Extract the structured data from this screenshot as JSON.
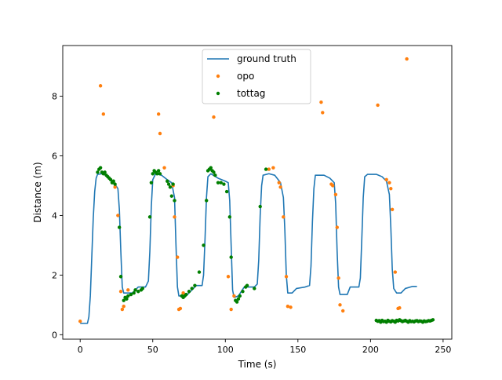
{
  "chart_data": {
    "type": "line",
    "title": "",
    "xlabel": "Time (s)",
    "ylabel": "Distance (m)",
    "xlim": [
      -12,
      256
    ],
    "ylim": [
      -0.15,
      9.7
    ],
    "xticks": [
      0,
      50,
      100,
      150,
      200,
      250
    ],
    "yticks": [
      0,
      2,
      4,
      6,
      8
    ],
    "legend_position": "top-center",
    "grid": false,
    "series": [
      {
        "name": "ground truth",
        "kind": "line",
        "color": "#1f77b4",
        "points": [
          [
            0,
            0.38
          ],
          [
            5,
            0.38
          ],
          [
            6,
            0.6
          ],
          [
            7,
            1.3
          ],
          [
            8,
            2.6
          ],
          [
            9,
            3.9
          ],
          [
            10,
            4.8
          ],
          [
            11,
            5.25
          ],
          [
            12,
            5.38
          ],
          [
            15,
            5.4
          ],
          [
            18,
            5.35
          ],
          [
            20,
            5.25
          ],
          [
            22,
            5.15
          ],
          [
            24,
            5.05
          ],
          [
            26,
            4.9
          ],
          [
            27,
            4.2
          ],
          [
            28,
            2.8
          ],
          [
            29,
            1.6
          ],
          [
            30,
            1.4
          ],
          [
            36,
            1.4
          ],
          [
            38,
            1.5
          ],
          [
            40,
            1.6
          ],
          [
            45,
            1.6
          ],
          [
            47,
            1.8
          ],
          [
            48,
            2.8
          ],
          [
            49,
            4.3
          ],
          [
            50,
            5.2
          ],
          [
            52,
            5.4
          ],
          [
            56,
            5.35
          ],
          [
            60,
            5.2
          ],
          [
            63,
            5.1
          ],
          [
            65,
            4.6
          ],
          [
            66,
            3.0
          ],
          [
            67,
            1.6
          ],
          [
            68,
            1.3
          ],
          [
            73,
            1.3
          ],
          [
            76,
            1.45
          ],
          [
            80,
            1.65
          ],
          [
            84,
            1.65
          ],
          [
            85,
            2.0
          ],
          [
            86,
            3.2
          ],
          [
            87,
            4.6
          ],
          [
            88,
            5.3
          ],
          [
            90,
            5.4
          ],
          [
            95,
            5.25
          ],
          [
            100,
            5.15
          ],
          [
            102,
            5.1
          ],
          [
            103,
            4.5
          ],
          [
            104,
            3.0
          ],
          [
            105,
            1.5
          ],
          [
            106,
            1.25
          ],
          [
            109,
            1.3
          ],
          [
            113,
            1.6
          ],
          [
            120,
            1.6
          ],
          [
            122,
            1.7
          ],
          [
            123,
            2.5
          ],
          [
            124,
            4.0
          ],
          [
            125,
            5.0
          ],
          [
            126,
            5.35
          ],
          [
            130,
            5.4
          ],
          [
            134,
            5.35
          ],
          [
            138,
            5.1
          ],
          [
            140,
            4.6
          ],
          [
            141,
            3.5
          ],
          [
            142,
            2.0
          ],
          [
            143,
            1.4
          ],
          [
            146,
            1.4
          ],
          [
            149,
            1.55
          ],
          [
            155,
            1.6
          ],
          [
            158,
            1.65
          ],
          [
            159,
            2.3
          ],
          [
            160,
            3.8
          ],
          [
            161,
            4.9
          ],
          [
            162,
            5.35
          ],
          [
            168,
            5.35
          ],
          [
            172,
            5.25
          ],
          [
            175,
            5.1
          ],
          [
            176,
            4.4
          ],
          [
            177,
            2.8
          ],
          [
            178,
            1.6
          ],
          [
            179,
            1.35
          ],
          [
            184,
            1.35
          ],
          [
            186,
            1.6
          ],
          [
            192,
            1.6
          ],
          [
            193,
            1.9
          ],
          [
            194,
            3.2
          ],
          [
            195,
            4.6
          ],
          [
            196,
            5.3
          ],
          [
            198,
            5.38
          ],
          [
            204,
            5.38
          ],
          [
            208,
            5.3
          ],
          [
            211,
            5.15
          ],
          [
            213,
            4.7
          ],
          [
            214,
            3.6
          ],
          [
            215,
            2.2
          ],
          [
            216,
            1.55
          ],
          [
            218,
            1.4
          ],
          [
            221,
            1.4
          ],
          [
            224,
            1.55
          ],
          [
            229,
            1.62
          ],
          [
            232,
            1.62
          ]
        ]
      },
      {
        "name": "opo",
        "kind": "scatter",
        "color": "#ff7f0e",
        "points": [
          [
            0,
            0.45
          ],
          [
            14,
            8.35
          ],
          [
            16,
            7.4
          ],
          [
            24,
            4.95
          ],
          [
            26,
            4.0
          ],
          [
            28,
            1.45
          ],
          [
            29,
            0.85
          ],
          [
            30,
            0.95
          ],
          [
            33,
            1.5
          ],
          [
            54,
            7.4
          ],
          [
            55,
            6.75
          ],
          [
            58,
            5.6
          ],
          [
            64,
            5.0
          ],
          [
            65,
            3.95
          ],
          [
            67,
            2.6
          ],
          [
            68,
            0.85
          ],
          [
            69,
            0.88
          ],
          [
            71,
            1.4
          ],
          [
            92,
            7.3
          ],
          [
            102,
            1.95
          ],
          [
            104,
            0.85
          ],
          [
            106,
            1.3
          ],
          [
            130,
            5.55
          ],
          [
            133,
            5.6
          ],
          [
            137,
            5.1
          ],
          [
            138,
            4.95
          ],
          [
            140,
            3.95
          ],
          [
            142,
            1.95
          ],
          [
            143,
            0.95
          ],
          [
            145,
            0.92
          ],
          [
            166,
            7.8
          ],
          [
            167,
            7.45
          ],
          [
            173,
            5.05
          ],
          [
            174,
            5.0
          ],
          [
            176,
            4.7
          ],
          [
            177,
            3.6
          ],
          [
            178,
            1.9
          ],
          [
            179,
            1.0
          ],
          [
            181,
            0.8
          ],
          [
            205,
            7.7
          ],
          [
            211,
            5.2
          ],
          [
            213,
            5.1
          ],
          [
            214,
            4.9
          ],
          [
            215,
            4.2
          ],
          [
            217,
            2.1
          ],
          [
            219,
            0.88
          ],
          [
            220,
            0.9
          ],
          [
            225,
            9.25
          ]
        ]
      },
      {
        "name": "tottag",
        "kind": "scatter",
        "color": "#007f00",
        "points": [
          [
            12,
            5.45
          ],
          [
            13,
            5.55
          ],
          [
            14,
            5.6
          ],
          [
            15,
            5.45
          ],
          [
            16,
            5.4
          ],
          [
            17,
            5.45
          ],
          [
            18,
            5.35
          ],
          [
            19,
            5.3
          ],
          [
            20,
            5.25
          ],
          [
            21,
            5.2
          ],
          [
            22,
            5.1
          ],
          [
            23,
            5.15
          ],
          [
            24,
            5.05
          ],
          [
            27,
            3.6
          ],
          [
            28,
            1.95
          ],
          [
            30,
            1.15
          ],
          [
            31,
            1.25
          ],
          [
            32,
            1.2
          ],
          [
            33,
            1.3
          ],
          [
            35,
            1.35
          ],
          [
            37,
            1.4
          ],
          [
            38,
            1.5
          ],
          [
            40,
            1.45
          ],
          [
            42,
            1.5
          ],
          [
            43,
            1.55
          ],
          [
            48,
            3.95
          ],
          [
            49,
            5.1
          ],
          [
            50,
            5.4
          ],
          [
            51,
            5.5
          ],
          [
            52,
            5.45
          ],
          [
            53,
            5.4
          ],
          [
            54,
            5.5
          ],
          [
            55,
            5.4
          ],
          [
            60,
            5.15
          ],
          [
            61,
            5.05
          ],
          [
            62,
            4.95
          ],
          [
            63,
            4.65
          ],
          [
            64,
            5.05
          ],
          [
            65,
            4.5
          ],
          [
            70,
            1.3
          ],
          [
            71,
            1.25
          ],
          [
            72,
            1.3
          ],
          [
            73,
            1.35
          ],
          [
            75,
            1.45
          ],
          [
            77,
            1.55
          ],
          [
            79,
            1.65
          ],
          [
            82,
            2.1
          ],
          [
            85,
            3.0
          ],
          [
            87,
            4.5
          ],
          [
            88,
            5.5
          ],
          [
            89,
            5.55
          ],
          [
            90,
            5.6
          ],
          [
            91,
            5.5
          ],
          [
            92,
            5.45
          ],
          [
            93,
            5.35
          ],
          [
            95,
            5.1
          ],
          [
            97,
            5.1
          ],
          [
            99,
            5.05
          ],
          [
            101,
            4.8
          ],
          [
            103,
            3.95
          ],
          [
            104,
            2.6
          ],
          [
            107,
            1.15
          ],
          [
            108,
            1.1
          ],
          [
            109,
            1.2
          ],
          [
            110,
            1.3
          ],
          [
            112,
            1.45
          ],
          [
            114,
            1.6
          ],
          [
            115,
            1.65
          ],
          [
            120,
            1.55
          ],
          [
            124,
            4.3
          ],
          [
            128,
            5.55
          ],
          [
            204,
            0.48
          ],
          [
            205,
            0.45
          ],
          [
            206,
            0.47
          ],
          [
            207,
            0.42
          ],
          [
            208,
            0.48
          ],
          [
            209,
            0.44
          ],
          [
            210,
            0.45
          ],
          [
            211,
            0.42
          ],
          [
            212,
            0.48
          ],
          [
            213,
            0.45
          ],
          [
            214,
            0.43
          ],
          [
            215,
            0.47
          ],
          [
            216,
            0.45
          ],
          [
            217,
            0.42
          ],
          [
            218,
            0.48
          ],
          [
            219,
            0.46
          ],
          [
            220,
            0.5
          ],
          [
            221,
            0.47
          ],
          [
            222,
            0.44
          ],
          [
            223,
            0.46
          ],
          [
            224,
            0.48
          ],
          [
            225,
            0.45
          ],
          [
            226,
            0.42
          ],
          [
            227,
            0.47
          ],
          [
            228,
            0.44
          ],
          [
            229,
            0.45
          ],
          [
            230,
            0.43
          ],
          [
            231,
            0.46
          ],
          [
            232,
            0.47
          ],
          [
            233,
            0.44
          ],
          [
            234,
            0.46
          ],
          [
            235,
            0.45
          ],
          [
            236,
            0.42
          ],
          [
            237,
            0.46
          ],
          [
            238,
            0.44
          ],
          [
            239,
            0.45
          ],
          [
            240,
            0.47
          ],
          [
            241,
            0.46
          ],
          [
            242,
            0.48
          ],
          [
            243,
            0.5
          ]
        ]
      }
    ]
  }
}
